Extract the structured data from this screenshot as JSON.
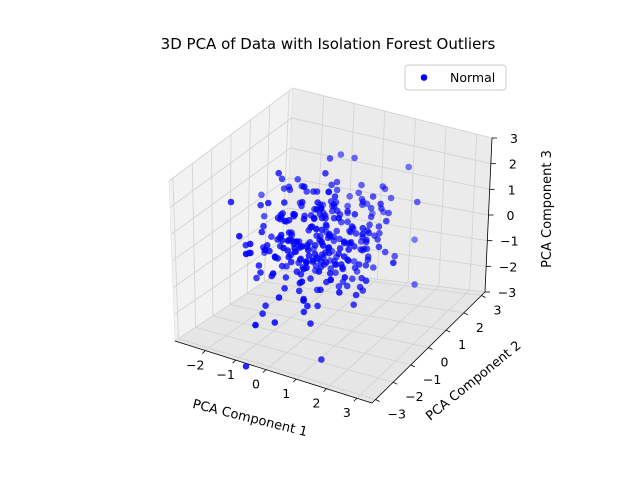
{
  "chart_data": {
    "type": "scatter",
    "projection": "3d",
    "title": "3D PCA of Data with Isolation Forest Outliers",
    "xlabel": "PCA Component 1",
    "ylabel": "PCA Component 2",
    "zlabel": "PCA Component 3",
    "xlim": [
      -3,
      3.5
    ],
    "ylim": [
      -3.2,
      3.2
    ],
    "zlim": [
      -3,
      3
    ],
    "xticks": [
      -2,
      -1,
      0,
      1,
      2,
      3
    ],
    "yticks": [
      -3,
      -2,
      -1,
      0,
      1,
      2,
      3
    ],
    "zticks": [
      -3,
      -2,
      -1,
      0,
      1,
      2,
      3
    ],
    "grid": true,
    "legend": {
      "placement": "top-right",
      "entries": [
        {
          "label": "Normal",
          "color": "#0000ff"
        }
      ]
    },
    "series": [
      {
        "name": "Normal",
        "color": "#0000ff",
        "n_points": 300,
        "distribution": "standard-normal",
        "center": [
          0,
          0,
          0
        ]
      }
    ]
  }
}
